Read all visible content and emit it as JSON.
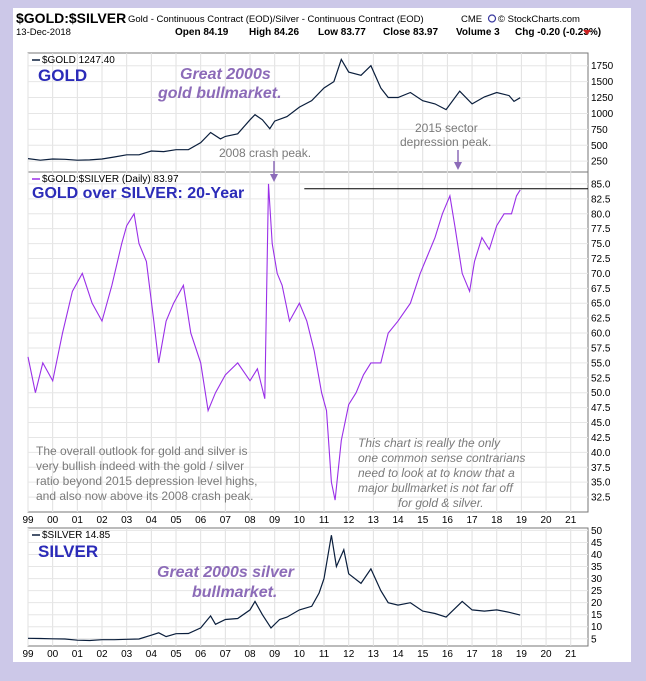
{
  "header": {
    "symbol": "$GOLD:$SILVER",
    "description": "Gold - Continuous Contract (EOD)/Silver - Continuous Contract (EOD)",
    "exchange": "CME",
    "source": "© StockCharts.com",
    "date": "13-Dec-2018",
    "open": "Open 84.19",
    "high": "High 84.26",
    "low": "Low 83.77",
    "close": "Close 83.97",
    "volume": "Volume 3",
    "chg": "Chg -0.20 (-0.23%)"
  },
  "colors": {
    "frame_bg": "#ccc8e8",
    "gold_line": "#0a1e3c",
    "ratio_line": "#9a2fe8",
    "silver_line": "#0a1e3c",
    "label_blue": "#2b2bb8",
    "annot_purple": "#8c6bb8",
    "annot_gray": "#7a7a7a"
  },
  "annotations": {
    "gold_title": "GOLD",
    "gold_bull_1": "Great 2000s",
    "gold_bull_2": "gold bullmarket.",
    "crash_peak": "2008 crash peak.",
    "sector_1": "2015 sector",
    "sector_2": "depression peak.",
    "ratio_title": "GOLD over SILVER: 20-Year",
    "outlook": [
      "The overall outlook for gold and silver is",
      "very bullish indeed with the gold / silver",
      "ratio beyond 2015 depression level highs,",
      "and also now above its 2008 crash peak."
    ],
    "contrarian": [
      "This chart is really the only",
      "one common sense contrarians",
      "need to look at to know that a",
      "major bullmarket is not far off",
      "for gold & silver."
    ],
    "silver_title": "SILVER",
    "silver_bull_1": "Great 2000s silver",
    "silver_bull_2": "bullmarket."
  },
  "chart_data": [
    {
      "type": "line",
      "title": "$GOLD 1247.40",
      "series": [
        {
          "name": "$GOLD",
          "color": "#0a1e3c",
          "x": [
            1999.0,
            1999.5,
            2000.0,
            2000.5,
            2001.0,
            2001.5,
            2002.0,
            2002.5,
            2003.0,
            2003.5,
            2004.0,
            2004.5,
            2005.0,
            2005.5,
            2006.0,
            2006.4,
            2006.8,
            2007.0,
            2007.5,
            2008.0,
            2008.2,
            2008.5,
            2008.8,
            2009.0,
            2009.5,
            2010.0,
            2010.5,
            2011.0,
            2011.4,
            2011.7,
            2012.0,
            2012.5,
            2012.9,
            2013.3,
            2013.6,
            2014.0,
            2014.5,
            2015.0,
            2015.5,
            2015.95,
            2016.5,
            2017.0,
            2017.5,
            2018.0,
            2018.5,
            2018.7,
            2018.95
          ],
          "values": [
            290,
            265,
            285,
            280,
            265,
            270,
            285,
            315,
            350,
            350,
            410,
            400,
            430,
            430,
            540,
            700,
            600,
            640,
            680,
            900,
            980,
            900,
            760,
            880,
            950,
            1100,
            1200,
            1400,
            1500,
            1850,
            1650,
            1600,
            1750,
            1400,
            1250,
            1250,
            1330,
            1200,
            1150,
            1060,
            1350,
            1150,
            1260,
            1330,
            1280,
            1190,
            1247
          ]
        }
      ],
      "ylim": [
        80,
        1950
      ],
      "yticks": [
        "1750",
        "1500",
        "1250",
        "1000",
        "750",
        "500",
        "250"
      ]
    },
    {
      "type": "line",
      "title": "$GOLD:$SILVER (Daily) 83.97",
      "series": [
        {
          "name": "$GOLD:$SILVER",
          "color": "#9a2fe8",
          "x": [
            1999.0,
            1999.3,
            1999.6,
            2000.0,
            2000.4,
            2000.8,
            2001.2,
            2001.6,
            2002.0,
            2002.4,
            2002.8,
            2003.0,
            2003.3,
            2003.5,
            2003.8,
            2004.1,
            2004.3,
            2004.6,
            2004.9,
            2005.3,
            2005.6,
            2006.0,
            2006.3,
            2006.6,
            2007.0,
            2007.5,
            2008.0,
            2008.3,
            2008.6,
            2008.75,
            2008.9,
            2009.1,
            2009.3,
            2009.6,
            2010.0,
            2010.3,
            2010.6,
            2010.9,
            2011.1,
            2011.3,
            2011.45,
            2011.7,
            2012.0,
            2012.3,
            2012.6,
            2012.9,
            2013.3,
            2013.6,
            2014.0,
            2014.5,
            2014.9,
            2015.2,
            2015.5,
            2015.8,
            2016.0,
            2016.1,
            2016.3,
            2016.6,
            2016.9,
            2017.1,
            2017.4,
            2017.7,
            2018.0,
            2018.3,
            2018.6,
            2018.8,
            2018.95
          ],
          "values": [
            56,
            50,
            55,
            52,
            60,
            67,
            70,
            65,
            62,
            68,
            75,
            78,
            80,
            75,
            72,
            62,
            55,
            62,
            65,
            68,
            60,
            55,
            47,
            50,
            53,
            55,
            52,
            54,
            49,
            85,
            75,
            70,
            68,
            62,
            65,
            62,
            57,
            50,
            47,
            35,
            32,
            42,
            48,
            50,
            53,
            55,
            55,
            60,
            62,
            65,
            70,
            73,
            76,
            80,
            82,
            83,
            78,
            70,
            67,
            72,
            76,
            74,
            78,
            80,
            80,
            83,
            84
          ]
        }
      ],
      "ylim": [
        30,
        87
      ],
      "yticks": [
        "85.0",
        "82.5",
        "80.0",
        "77.5",
        "75.0",
        "72.5",
        "70.0",
        "67.5",
        "65.0",
        "62.5",
        "60.0",
        "57.5",
        "55.0",
        "52.5",
        "50.0",
        "47.5",
        "45.0",
        "42.5",
        "40.0",
        "37.5",
        "35.0",
        "32.5"
      ],
      "reference_level": 84.2
    },
    {
      "type": "line",
      "title": "$SILVER 14.85",
      "series": [
        {
          "name": "$SILVER",
          "color": "#0a1e3c",
          "x": [
            1999.0,
            1999.5,
            2000.0,
            2000.5,
            2001.0,
            2001.5,
            2002.0,
            2002.5,
            2003.0,
            2003.5,
            2004.0,
            2004.3,
            2004.6,
            2005.0,
            2005.5,
            2006.0,
            2006.4,
            2006.6,
            2007.0,
            2007.5,
            2008.0,
            2008.2,
            2008.5,
            2008.85,
            2009.2,
            2009.5,
            2010.0,
            2010.5,
            2010.8,
            2011.0,
            2011.3,
            2011.5,
            2011.8,
            2012.0,
            2012.5,
            2012.9,
            2013.3,
            2013.6,
            2014.0,
            2014.5,
            2015.0,
            2015.5,
            2015.95,
            2016.6,
            2017.0,
            2017.5,
            2018.0,
            2018.5,
            2018.95
          ],
          "values": [
            5.2,
            5.1,
            5.0,
            4.9,
            4.4,
            4.3,
            4.6,
            4.6,
            4.8,
            4.9,
            6.5,
            7.5,
            5.9,
            7.1,
            7.2,
            9.5,
            14.5,
            11.0,
            13.0,
            13.4,
            17.0,
            20.5,
            15.0,
            9.5,
            13.0,
            14.0,
            17.0,
            18.5,
            24.0,
            30.0,
            48.0,
            35.0,
            42.0,
            32.0,
            28.0,
            34.0,
            25.0,
            20.0,
            19.0,
            20.0,
            16.5,
            15.5,
            14.0,
            20.5,
            17.0,
            16.5,
            17.0,
            16.0,
            14.85
          ]
        }
      ],
      "ylim": [
        2,
        51
      ],
      "yticks": [
        "50",
        "45",
        "40",
        "35",
        "30",
        "25",
        "20",
        "15",
        "10",
        "5"
      ]
    }
  ],
  "x_axis": {
    "labels": [
      "99",
      "00",
      "01",
      "02",
      "03",
      "04",
      "05",
      "06",
      "07",
      "08",
      "09",
      "10",
      "11",
      "12",
      "13",
      "14",
      "15",
      "16",
      "17",
      "18",
      "19",
      "20",
      "21"
    ]
  }
}
